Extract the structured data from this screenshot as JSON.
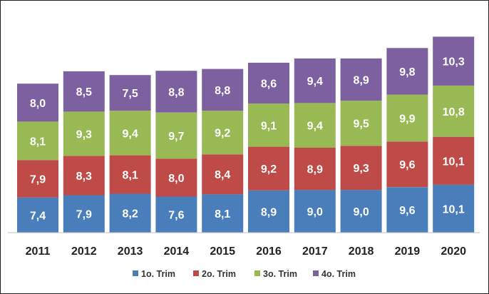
{
  "chart_data": {
    "type": "bar",
    "stacked": true,
    "categories": [
      "2011",
      "2012",
      "2013",
      "2014",
      "2015",
      "2016",
      "2017",
      "2018",
      "2019",
      "2020"
    ],
    "series": [
      {
        "name": "1o. Trim",
        "color": "#4a7ebb",
        "values": [
          7.4,
          7.9,
          8.2,
          7.6,
          8.1,
          8.9,
          9.0,
          9.0,
          9.6,
          10.1
        ],
        "labels": [
          "7,4",
          "7,9",
          "8,2",
          "7,6",
          "8,1",
          "8,9",
          "9,0",
          "9,0",
          "9,6",
          "10,1"
        ]
      },
      {
        "name": "2o. Trim",
        "color": "#be4b48",
        "values": [
          7.9,
          8.3,
          8.1,
          8.0,
          8.4,
          9.2,
          8.9,
          9.3,
          9.6,
          10.1
        ],
        "labels": [
          "7,9",
          "8,3",
          "8,1",
          "8,0",
          "8,4",
          "9,2",
          "8,9",
          "9,3",
          "9,6",
          "10,1"
        ]
      },
      {
        "name": "3o. Trim",
        "color": "#98b954",
        "values": [
          8.1,
          9.3,
          9.4,
          9.7,
          9.2,
          9.1,
          9.4,
          9.5,
          9.9,
          10.8
        ],
        "labels": [
          "8,1",
          "9,3",
          "9,4",
          "9,7",
          "9,2",
          "9,1",
          "9,4",
          "9,5",
          "9,9",
          "10,8"
        ]
      },
      {
        "name": "4o. Trim",
        "color": "#7d60a0",
        "values": [
          8.0,
          8.5,
          7.5,
          8.8,
          8.8,
          8.6,
          9.4,
          8.9,
          9.8,
          10.3
        ],
        "labels": [
          "8,0",
          "8,5",
          "7,5",
          "8,8",
          "8,8",
          "8,6",
          "9,4",
          "8,9",
          "9,8",
          "10,3"
        ]
      }
    ],
    "ylim": [
      0,
      42
    ],
    "grid": false,
    "legend_position": "bottom"
  }
}
